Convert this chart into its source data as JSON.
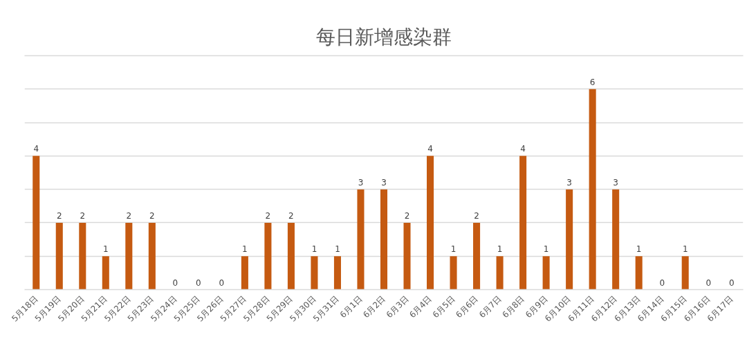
{
  "chart_data": {
    "type": "bar",
    "title": "每日新增感染群",
    "categories": [
      "5月18日",
      "5月19日",
      "5月20日",
      "5月21日",
      "5月22日",
      "5月23日",
      "5月24日",
      "5月25日",
      "5月26日",
      "5月27日",
      "5月28日",
      "5月29日",
      "5月30日",
      "5月31日",
      "6月1日",
      "6月2日",
      "6月3日",
      "6月4日",
      "6月5日",
      "6月6日",
      "6月7日",
      "6月8日",
      "6月9日",
      "6月10日",
      "6月11日",
      "6月12日",
      "6月13日",
      "6月14日",
      "6月15日",
      "6月16日",
      "6月17日"
    ],
    "values": [
      4,
      2,
      2,
      1,
      2,
      2,
      0,
      0,
      0,
      1,
      2,
      2,
      1,
      1,
      3,
      3,
      2,
      4,
      1,
      2,
      1,
      4,
      1,
      3,
      6,
      3,
      1,
      0,
      1,
      0,
      0
    ],
    "color": "#c55a11",
    "ylim": [
      0,
      7
    ],
    "yticks": [
      {
        "value": 0,
        "label": null
      },
      {
        "value": 1,
        "label": null
      },
      {
        "value": 2,
        "label": null
      },
      {
        "value": 3,
        "label": null
      },
      {
        "value": 4,
        "label": null
      },
      {
        "value": 5,
        "label": null
      },
      {
        "value": 6,
        "label": null
      },
      {
        "value": 7,
        "label": null
      }
    ],
    "tick_labels": "x",
    "grid": "y",
    "data_labels": true
  }
}
